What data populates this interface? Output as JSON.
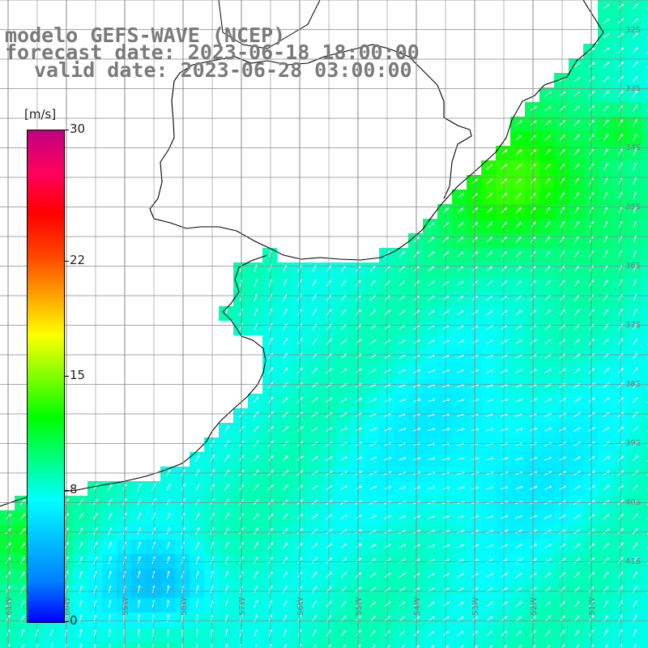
{
  "title": {
    "model": "modelo GEFS-WAVE (NCEP)",
    "forecast": "forecast date: 2023-06-18 18:00:00",
    "valid": "valid date: 2023-06-28 03:00:00"
  },
  "colorbar": {
    "unit": "[m/s]",
    "min": 0,
    "max": 30,
    "ticks": [
      {
        "value": 30,
        "label": "30"
      },
      {
        "value": 22,
        "label": "22"
      },
      {
        "value": 15,
        "label": "15"
      },
      {
        "value": 8,
        "label": "8"
      },
      {
        "value": 0,
        "label": "0"
      }
    ],
    "colors": [
      "#0000ff",
      "#0080ff",
      "#00c0ff",
      "#00ffff",
      "#00ff80",
      "#00ff00",
      "#80ff00",
      "#ffff00",
      "#ffa000",
      "#ff4000",
      "#ff0000",
      "#ff0060",
      "#c00080"
    ]
  },
  "map": {
    "ocean_color": "#00c8ff",
    "land_color": "#ffffff",
    "grid_color": "#8a8a8a",
    "arrow_color": "#ffffff",
    "lat_labels": [
      "32S",
      "33S",
      "34S",
      "35S",
      "36S",
      "37S",
      "38S",
      "39S",
      "40S",
      "41S"
    ],
    "lon_labels": [
      "61W",
      "60W",
      "59W",
      "58W",
      "57W",
      "56W",
      "55W",
      "54W",
      "53W",
      "52W",
      "51W"
    ]
  }
}
